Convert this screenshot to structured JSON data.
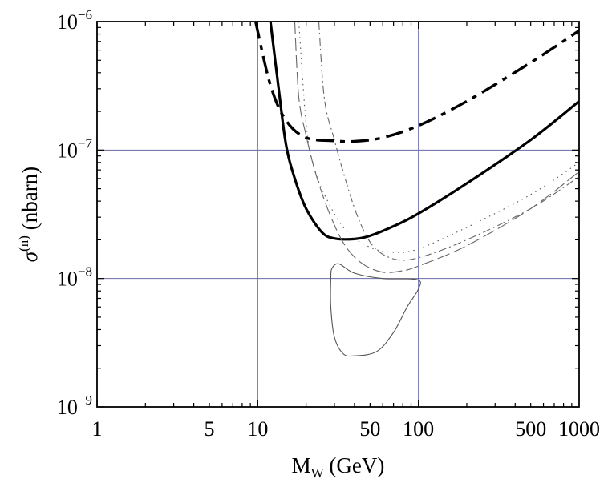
{
  "chart_data": {
    "type": "line",
    "x_scale": "log",
    "y_scale": "log",
    "xlim": [
      1,
      1000
    ],
    "ylim": [
      1e-09,
      1e-06
    ],
    "xlabel": {
      "main": "M",
      "sub": "W",
      "rest": " (GeV)"
    },
    "ylabel": {
      "main": "σ",
      "sup": "(n)",
      "rest": " (nbarn)"
    },
    "x_ticks": [
      {
        "value": 1,
        "label": "1"
      },
      {
        "value": 5,
        "label": "5"
      },
      {
        "value": 10,
        "label": "10"
      },
      {
        "value": 50,
        "label": "50"
      },
      {
        "value": 100,
        "label": "100"
      },
      {
        "value": 500,
        "label": "500"
      },
      {
        "value": 1000,
        "label": "1000"
      }
    ],
    "y_ticks": [
      {
        "value": 1e-06,
        "base": "10",
        "exp": "−6"
      },
      {
        "value": 1e-07,
        "base": "10",
        "exp": "−7"
      },
      {
        "value": 1e-08,
        "base": "10",
        "exp": "−8"
      },
      {
        "value": 1e-09,
        "base": "10",
        "exp": "−9"
      }
    ],
    "grid": {
      "x": [
        10,
        100
      ],
      "y": [
        1e-07,
        1e-08
      ],
      "color": "#6a6aa8"
    },
    "series": [
      {
        "name": "thick-dashed-limit",
        "style": "thick-dashed",
        "points": [
          [
            9.7,
            1e-06
          ],
          [
            12,
            3.2e-07
          ],
          [
            15,
            1.7e-07
          ],
          [
            20,
            1.25e-07
          ],
          [
            30,
            1.18e-07
          ],
          [
            40,
            1.17e-07
          ],
          [
            60,
            1.25e-07
          ],
          [
            100,
            1.55e-07
          ],
          [
            200,
            2.4e-07
          ],
          [
            500,
            4.8e-07
          ],
          [
            1000,
            8.5e-07
          ]
        ]
      },
      {
        "name": "thick-solid-limit",
        "style": "thick-solid",
        "points": [
          [
            12,
            1e-06
          ],
          [
            13.5,
            3e-07
          ],
          [
            15,
            1.1e-07
          ],
          [
            17,
            6e-08
          ],
          [
            20,
            3.5e-08
          ],
          [
            25,
            2.3e-08
          ],
          [
            30,
            2.05e-08
          ],
          [
            40,
            2.03e-08
          ],
          [
            50,
            2.15e-08
          ],
          [
            70,
            2.55e-08
          ],
          [
            100,
            3.2e-08
          ],
          [
            200,
            5.5e-08
          ],
          [
            500,
            1.2e-07
          ],
          [
            1000,
            2.4e-07
          ]
        ]
      },
      {
        "name": "dotted-limit",
        "style": "dotted",
        "points": [
          [
            18,
            1e-06
          ],
          [
            20,
            1.6e-07
          ],
          [
            22,
            8e-08
          ],
          [
            26,
            4.5e-08
          ],
          [
            35,
            2.4e-08
          ],
          [
            50,
            1.75e-08
          ],
          [
            70,
            1.6e-08
          ],
          [
            100,
            1.7e-08
          ],
          [
            200,
            2.5e-08
          ],
          [
            500,
            4.5e-08
          ],
          [
            1000,
            8e-08
          ]
        ]
      },
      {
        "name": "dash-dot-limit",
        "style": "dash-dot",
        "points": [
          [
            24,
            1e-06
          ],
          [
            26,
            2.5e-07
          ],
          [
            30,
            1.2e-07
          ],
          [
            35,
            6e-08
          ],
          [
            42,
            3e-08
          ],
          [
            52,
            1.8e-08
          ],
          [
            70,
            1.42e-08
          ],
          [
            100,
            1.45e-08
          ],
          [
            200,
            2e-08
          ],
          [
            500,
            3.5e-08
          ],
          [
            1000,
            6.2e-08
          ]
        ]
      },
      {
        "name": "long-dash-limit",
        "style": "long-dash",
        "points": [
          [
            17,
            1e-06
          ],
          [
            18,
            2.6e-07
          ],
          [
            20,
            1.3e-07
          ],
          [
            23,
            6.5e-08
          ],
          [
            28,
            3.2e-08
          ],
          [
            35,
            1.8e-08
          ],
          [
            45,
            1.3e-08
          ],
          [
            60,
            1.12e-08
          ],
          [
            80,
            1.15e-08
          ],
          [
            100,
            1.25e-08
          ],
          [
            200,
            1.8e-08
          ],
          [
            500,
            3.5e-08
          ],
          [
            1000,
            6.8e-08
          ]
        ]
      },
      {
        "name": "allowed-region",
        "style": "thin-closed",
        "points": [
          [
            29,
            1.2e-08
          ],
          [
            32,
            1.3e-08
          ],
          [
            40,
            1.1e-08
          ],
          [
            60,
            1e-08
          ],
          [
            98,
            9.8e-09
          ],
          [
            100,
            8.3e-09
          ],
          [
            85,
            6e-09
          ],
          [
            70,
            3.8e-09
          ],
          [
            55,
            2.7e-09
          ],
          [
            40,
            2.5e-09
          ],
          [
            34,
            2.6e-09
          ],
          [
            30,
            3.5e-09
          ],
          [
            28.5,
            6e-09
          ],
          [
            28.5,
            1e-08
          ]
        ]
      }
    ]
  }
}
